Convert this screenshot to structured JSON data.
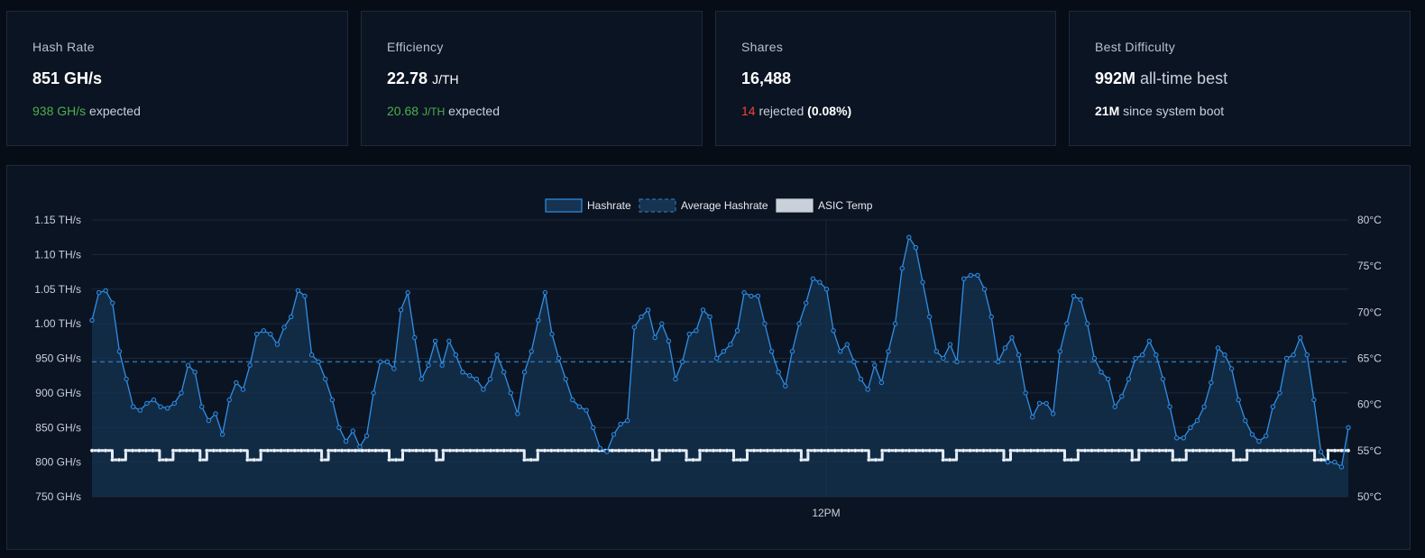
{
  "stats": {
    "hash_rate": {
      "title": "Hash Rate",
      "value": "851 GH/s",
      "expected_value": "938 GH/s",
      "expected_label": "expected"
    },
    "efficiency": {
      "title": "Efficiency",
      "value": "22.78",
      "value_unit": "J/TH",
      "expected_value": "20.68",
      "expected_unit": "J/TH",
      "expected_label": "expected"
    },
    "shares": {
      "title": "Shares",
      "value": "16,488",
      "rejected_count": "14",
      "rejected_label": "rejected",
      "rejected_pct": "(0.08%)"
    },
    "best_difficulty": {
      "title": "Best Difficulty",
      "value": "992M",
      "value_suffix": "all-time best",
      "boot_value": "21M",
      "boot_label": "since system boot"
    }
  },
  "colors": {
    "hashrate_line": "#2f8fe6",
    "hashrate_fill": "#163352",
    "average_line": "#2f6fa8",
    "temp_line": "#e6edf5",
    "expected_green": "#4caf50",
    "rejected_red": "#f04438"
  },
  "chart_data": {
    "type": "line",
    "legend": [
      "Hashrate",
      "Average Hashrate",
      "ASIC Temp"
    ],
    "legend_position": "top-center",
    "y_left": {
      "min": 750,
      "max": 1150,
      "unit": "GH/s",
      "ticks": [
        "1.15 TH/s",
        "1.10 TH/s",
        "1.05 TH/s",
        "1.00 TH/s",
        "950 GH/s",
        "900 GH/s",
        "850 GH/s",
        "800 GH/s",
        "750 GH/s"
      ]
    },
    "y_right": {
      "min": 50,
      "max": 80,
      "unit": "°C",
      "ticks": [
        "80°C",
        "75°C",
        "70°C",
        "65°C",
        "60°C",
        "55°C",
        "50°C"
      ]
    },
    "x_ticks": [
      "12PM"
    ],
    "grid": true,
    "average_hashrate": 945,
    "series": [
      {
        "name": "Hashrate",
        "values": [
          1005,
          1045,
          1048,
          1030,
          960,
          920,
          880,
          875,
          885,
          890,
          880,
          878,
          885,
          900,
          940,
          930,
          880,
          860,
          870,
          840,
          890,
          915,
          905,
          940,
          985,
          990,
          985,
          970,
          995,
          1010,
          1048,
          1040,
          955,
          945,
          920,
          890,
          850,
          830,
          845,
          822,
          838,
          900,
          945,
          945,
          935,
          1020,
          1045,
          980,
          920,
          940,
          975,
          940,
          975,
          955,
          930,
          925,
          920,
          905,
          920,
          955,
          930,
          900,
          870,
          930,
          960,
          1005,
          1045,
          985,
          950,
          920,
          890,
          880,
          875,
          850,
          820,
          815,
          840,
          855,
          860,
          995,
          1010,
          1020,
          980,
          1000,
          975,
          920,
          945,
          985,
          990,
          1020,
          1010,
          950,
          960,
          970,
          990,
          1045,
          1040,
          1040,
          1000,
          960,
          930,
          910,
          960,
          1000,
          1030,
          1065,
          1060,
          1050,
          990,
          960,
          970,
          945,
          920,
          905,
          940,
          915,
          960,
          1000,
          1080,
          1125,
          1110,
          1060,
          1010,
          960,
          950,
          970,
          945,
          1065,
          1070,
          1070,
          1050,
          1010,
          945,
          965,
          980,
          955,
          900,
          865,
          885,
          885,
          870,
          960,
          1000,
          1040,
          1035,
          1000,
          950,
          930,
          920,
          880,
          895,
          920,
          950,
          955,
          975,
          955,
          920,
          880,
          835,
          835,
          850,
          860,
          880,
          915,
          965,
          955,
          935,
          890,
          860,
          840,
          830,
          838,
          880,
          900,
          950,
          955,
          980,
          955,
          890,
          815,
          800,
          800,
          793,
          850
        ]
      },
      {
        "name": "ASIC Temp",
        "values": [
          55,
          55,
          55,
          54,
          54,
          55,
          55,
          55,
          55,
          55,
          54,
          54,
          55,
          55,
          55,
          55,
          54,
          55,
          55,
          55,
          55,
          55,
          55,
          54,
          54,
          55,
          55,
          55,
          55,
          55,
          55,
          55,
          55,
          55,
          54,
          55,
          55,
          55,
          55,
          55,
          55,
          55,
          55,
          55,
          54,
          54,
          55,
          55,
          55,
          55,
          55,
          54,
          55,
          55,
          55,
          55,
          55,
          55,
          55,
          55,
          55,
          55,
          55,
          55,
          54,
          54,
          55,
          55,
          55,
          55,
          55,
          55,
          55,
          55,
          55,
          55,
          55,
          55,
          55,
          55,
          55,
          55,
          55,
          54,
          55,
          55,
          55,
          55,
          54,
          54,
          55,
          55,
          55,
          55,
          55,
          54,
          54,
          55,
          55,
          55,
          55,
          55,
          55,
          55,
          55,
          54,
          55,
          55,
          55,
          55,
          55,
          55,
          55,
          55,
          55,
          54,
          54,
          55,
          55,
          55,
          55,
          55,
          55,
          55,
          55,
          55,
          54,
          54,
          55,
          55,
          55,
          55,
          55,
          55,
          55,
          54,
          55,
          55,
          55,
          55,
          55,
          55,
          55,
          55,
          54,
          54,
          55,
          55,
          55,
          55,
          55,
          55,
          55,
          55,
          54,
          55,
          55,
          55,
          55,
          55,
          54,
          54,
          55,
          55,
          55,
          55,
          55,
          55,
          55,
          54,
          54,
          55,
          55,
          55,
          55,
          55,
          55,
          55,
          55,
          55,
          55,
          54,
          54,
          55,
          55,
          55,
          55
        ]
      }
    ]
  }
}
